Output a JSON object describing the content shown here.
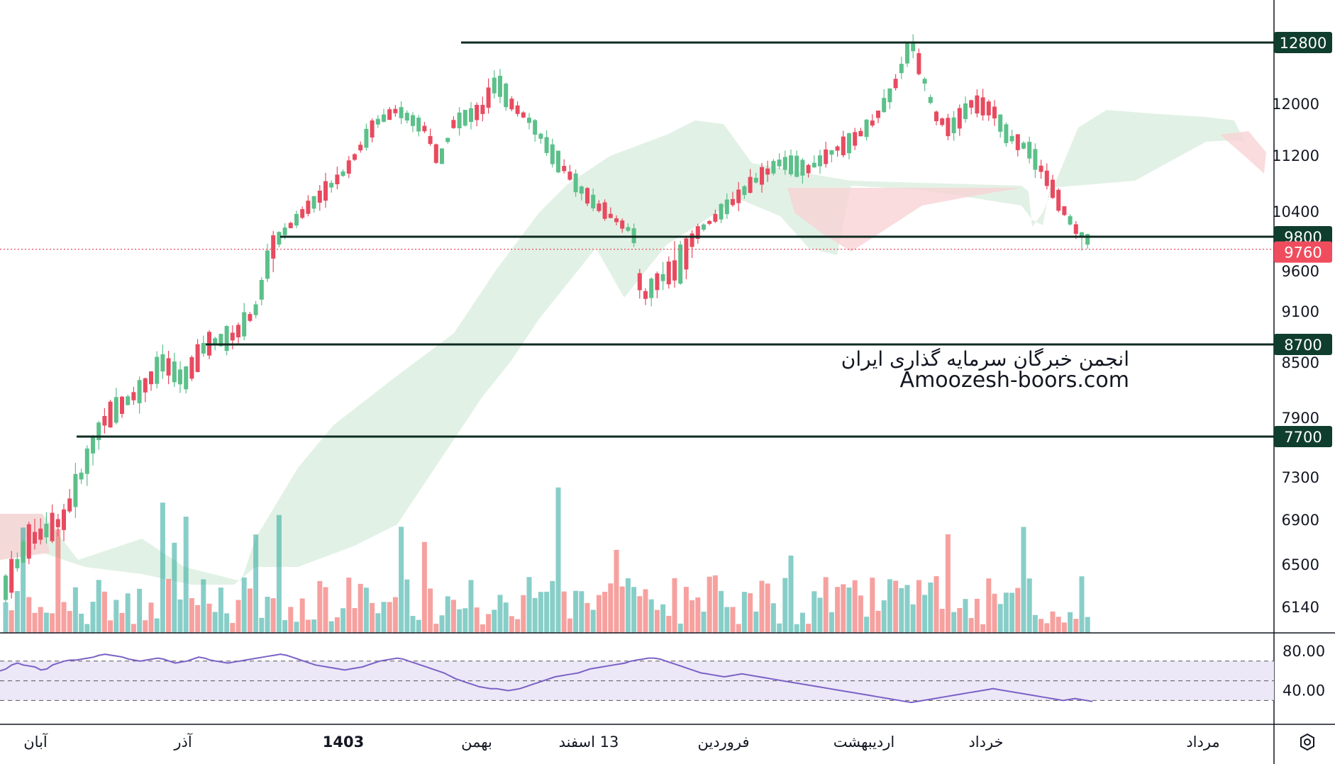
{
  "chart_data": {
    "type": "candlestick",
    "price_axis": {
      "ticks": [
        12800,
        12000,
        11200,
        10400,
        9600,
        9100,
        8500,
        7900,
        7300,
        6900,
        6500,
        6140
      ],
      "highlighted_labels": [
        {
          "value": 12800,
          "label": "12800",
          "color": "#0f3d2e"
        },
        {
          "value": 9800,
          "label": "9800",
          "color": "#0f3d2e"
        },
        {
          "value": 9760,
          "label": "9760",
          "color": "#ef4d5e"
        },
        {
          "value": 8700,
          "label": "8700",
          "color": "#0f3d2e"
        },
        {
          "value": 7700,
          "label": "7700",
          "color": "#0f3d2e"
        }
      ]
    },
    "horizontal_levels": [
      12800,
      9800,
      8700,
      7700
    ],
    "last_price": 9760,
    "time_labels": [
      "آبان",
      "آذر",
      "1403",
      "بهمن",
      "13 اسفند",
      "فروردین",
      "اردیبهشت",
      "خرداد",
      "مرداد"
    ],
    "rsi": {
      "ticks": [
        "80.00",
        "40.00"
      ],
      "levels": [
        70,
        50,
        30
      ],
      "values": [
        60,
        62,
        66,
        68,
        66,
        65,
        64,
        61,
        62,
        66,
        68,
        70,
        71,
        71,
        72,
        73,
        74,
        76,
        77,
        76,
        75,
        74,
        72,
        71,
        70,
        71,
        72,
        73,
        72,
        70,
        68,
        69,
        70,
        72,
        74,
        73,
        71,
        70,
        69,
        68,
        69,
        70,
        71,
        72,
        73,
        74,
        75,
        76,
        77,
        76,
        74,
        72,
        70,
        68,
        66,
        65,
        64,
        63,
        62,
        61,
        62,
        63,
        64,
        66,
        68,
        70,
        71,
        72,
        73,
        72,
        70,
        68,
        66,
        64,
        62,
        60,
        58,
        55,
        52,
        50,
        48,
        46,
        44,
        43,
        42,
        42,
        41,
        40,
        41,
        42,
        44,
        46,
        48,
        50,
        52,
        54,
        55,
        56,
        57,
        58,
        60,
        62,
        63,
        64,
        65,
        66,
        67,
        68,
        70,
        71,
        72,
        73,
        73,
        72,
        70,
        68,
        66,
        64,
        62,
        60,
        58,
        57,
        56,
        55,
        54,
        55,
        56,
        57,
        56,
        55,
        54,
        53,
        52,
        51,
        50,
        49,
        48,
        47,
        46,
        45,
        44,
        43,
        42,
        41,
        40,
        39,
        38,
        37,
        36,
        35,
        34,
        33,
        32,
        31,
        30,
        29,
        28,
        29,
        30,
        31,
        32,
        33,
        34,
        35,
        36,
        37,
        38,
        39,
        40,
        41,
        42,
        41,
        40,
        39,
        38,
        37,
        36,
        35,
        34,
        33,
        32,
        31,
        30,
        31,
        32,
        31,
        30,
        29
      ]
    },
    "colors": {
      "up": "#26a69a",
      "down": "#ef5350",
      "up_body": "#5cc08a",
      "down_body": "#e84a5f",
      "cloud_green": "#cfe8d4",
      "cloud_red": "#f9d3d6",
      "level_line": "#0f2b22",
      "rsi_line": "#7b61c6",
      "rsi_band": "#ece8f7"
    }
  },
  "watermark": {
    "fa": "انجمن خبرگان سرمایه گذاری ایران",
    "en": "Amoozesh-boors.com"
  }
}
